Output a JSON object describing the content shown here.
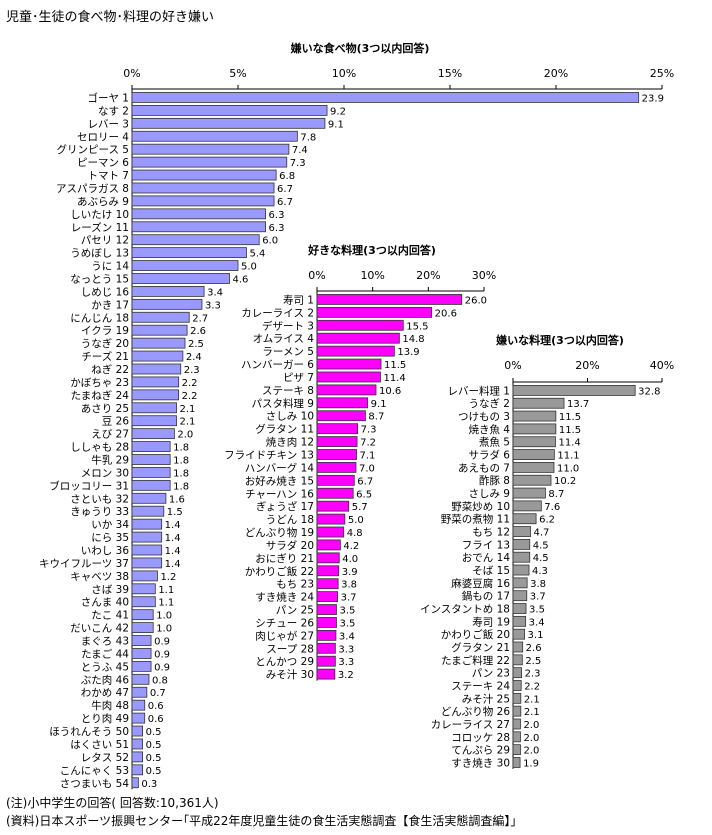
{
  "title": "児童･生徒の食べ物･料理の好き嫌い",
  "notes": [
    "(注)小中学生の回答( 回答数:10,361人)",
    "(資料)日本スポーツ振興センター｢平成22年度児童生徒の食生活実態調査【食生活実態調査編】｣"
  ],
  "chart_data": [
    {
      "id": "disliked-foods",
      "type": "bar",
      "orientation": "horizontal",
      "title": "嫌いな食べ物(3つ以内回答)",
      "xlim": [
        0,
        25
      ],
      "ticks": [
        "0%",
        "5%",
        "10%",
        "15%",
        "20%",
        "25%"
      ],
      "color": "#9999ff",
      "categories": [
        "ゴーヤ 1",
        "なす 2",
        "レバー 3",
        "セロリー 4",
        "グリンピース 5",
        "ピーマン 6",
        "トマト 7",
        "アスパラガス 8",
        "あぶらみ 9",
        "しいたけ 10",
        "レーズン 11",
        "パセリ 12",
        "うめぼし 13",
        "うに 14",
        "なっとう 15",
        "しめじ 16",
        "かき 17",
        "にんじん 18",
        "イクラ 19",
        "うなぎ 20",
        "チーズ 21",
        "ねぎ 22",
        "かぼちゃ 23",
        "たまねぎ 24",
        "あさり 25",
        "豆 26",
        "えび 27",
        "ししゃも 28",
        "牛乳 29",
        "メロン 30",
        "ブロッコリー 31",
        "さといも 32",
        "きゅうり 33",
        "いか 34",
        "にら 35",
        "いわし 36",
        "キウイフルーツ 37",
        "キャベツ 38",
        "さば 39",
        "さんま 40",
        "たこ 41",
        "だいこん 42",
        "まぐろ 43",
        "たまご 44",
        "とうふ 45",
        "ぶた肉 46",
        "わかめ 47",
        "牛肉 48",
        "とり肉 49",
        "ほうれんそう 50",
        "はくさい 51",
        "レタス 52",
        "こんにゃく 53",
        "さつまいも 54"
      ],
      "values": [
        23.9,
        9.2,
        9.1,
        7.8,
        7.4,
        7.3,
        6.8,
        6.7,
        6.7,
        6.3,
        6.3,
        6.0,
        5.4,
        5.0,
        4.6,
        3.4,
        3.3,
        2.7,
        2.6,
        2.5,
        2.4,
        2.3,
        2.2,
        2.2,
        2.1,
        2.1,
        2.0,
        1.8,
        1.8,
        1.8,
        1.8,
        1.6,
        1.5,
        1.4,
        1.4,
        1.4,
        1.4,
        1.2,
        1.1,
        1.1,
        1.0,
        1.0,
        0.9,
        0.9,
        0.9,
        0.8,
        0.7,
        0.6,
        0.6,
        0.5,
        0.5,
        0.5,
        0.5,
        0.3
      ],
      "value_labels": [
        "23.9",
        "9.2",
        "9.1",
        "7.8",
        "7.4",
        "7.3",
        "6.8",
        "6.7",
        "6.7",
        "6.3",
        "6.3",
        "6.0",
        "5.4",
        "5.0",
        "4.6",
        "3.4",
        "3.3",
        "2.7",
        "2.6",
        "2.5",
        "2.4",
        "2.3",
        "2.2",
        "2.2",
        "2.1",
        "2.1",
        "2.0",
        "1.8",
        "1.8",
        "1.8",
        "1.8",
        "1.6",
        "1.5",
        "1.4",
        "1.4",
        "1.4",
        "1.4",
        "1.2",
        "1.1",
        "1.1",
        "1.0",
        "1.0",
        "0.9",
        "0.9",
        "0.9",
        "0.8",
        "0.7",
        "0.6",
        "0.6",
        "0.5",
        "0.5",
        "0.5",
        "0.5",
        "0.3"
      ]
    },
    {
      "id": "liked-dishes",
      "type": "bar",
      "orientation": "horizontal",
      "title": "好きな料理(3つ以内回答)",
      "xlim": [
        0,
        30
      ],
      "ticks": [
        "0%",
        "10%",
        "20%",
        "30%"
      ],
      "color": "#ff00ff",
      "categories": [
        "寿司 1",
        "カレーライス 2",
        "デザート 3",
        "オムライス 4",
        "ラーメン 5",
        "ハンバーガー 6",
        "ピザ 7",
        "ステーキ 8",
        "パスタ料理 9",
        "さしみ 10",
        "グラタン 11",
        "焼き肉 12",
        "フライドチキン 13",
        "ハンバーグ 14",
        "お好み焼き 15",
        "チャーハン 16",
        "ぎょうざ 17",
        "うどん 18",
        "どんぶり物 19",
        "サラダ 20",
        "おにぎり 21",
        "かわりご飯 22",
        "もち 23",
        "すき焼き 24",
        "パン 25",
        "シチュー 26",
        "肉じゃが 27",
        "スープ 28",
        "とんかつ 29",
        "みそ汁 30"
      ],
      "values": [
        26.0,
        20.6,
        15.5,
        14.8,
        13.9,
        11.5,
        11.4,
        10.6,
        9.1,
        8.7,
        7.3,
        7.2,
        7.1,
        7.0,
        6.7,
        6.5,
        5.7,
        5.0,
        4.8,
        4.2,
        4.0,
        3.9,
        3.8,
        3.7,
        3.5,
        3.5,
        3.4,
        3.3,
        3.3,
        3.2
      ],
      "value_labels": [
        "26.0",
        "20.6",
        "15.5",
        "14.8",
        "13.9",
        "11.5",
        "11.4",
        "10.6",
        "9.1",
        "8.7",
        "7.3",
        "7.2",
        "7.1",
        "7.0",
        "6.7",
        "6.5",
        "5.7",
        "5.0",
        "4.8",
        "4.2",
        "4.0",
        "3.9",
        "3.8",
        "3.7",
        "3.5",
        "3.5",
        "3.4",
        "3.3",
        "3.3",
        "3.2"
      ]
    },
    {
      "id": "disliked-dishes",
      "type": "bar",
      "orientation": "horizontal",
      "title": "嫌いな料理(3つ以内回答)",
      "xlim": [
        0,
        40
      ],
      "ticks": [
        "0%",
        "20%",
        "40%"
      ],
      "color": "#999999",
      "categories": [
        "レバー料理 1",
        "うなぎ 2",
        "つけもの 3",
        "焼き魚 4",
        "煮魚 5",
        "サラダ 6",
        "あえもの 7",
        "酢豚 8",
        "さしみ 9",
        "野菜炒め 10",
        "野菜の煮物 11",
        "もち 12",
        "フライ 13",
        "おでん 14",
        "そば 15",
        "麻婆豆腐 16",
        "鍋もの 17",
        "インスタントめ 18",
        "寿司 19",
        "かわりご飯 20",
        "グラタン 21",
        "たまご料理 22",
        "パン 23",
        "ステーキ 24",
        "みそ汁 25",
        "どんぶり物 26",
        "カレーライス 27",
        "コロッケ 28",
        "てんぷら 29",
        "すき焼き 30"
      ],
      "values": [
        32.8,
        13.7,
        11.5,
        11.5,
        11.4,
        11.1,
        11.0,
        10.2,
        8.7,
        7.6,
        6.2,
        4.7,
        4.5,
        4.5,
        4.3,
        3.8,
        3.7,
        3.5,
        3.4,
        3.1,
        2.6,
        2.5,
        2.3,
        2.2,
        2.1,
        2.1,
        2.0,
        2.0,
        2.0,
        1.9
      ],
      "value_labels": [
        "32.8",
        "13.7",
        "11.5",
        "11.5",
        "11.4",
        "11.1",
        "11.0",
        "10.2",
        "8.7",
        "7.6",
        "6.2",
        "4.7",
        "4.5",
        "4.5",
        "4.3",
        "3.8",
        "3.7",
        "3.5",
        "3.4",
        "3.1",
        "2.6",
        "2.5",
        "2.3",
        "2.2",
        "2.1",
        "2.1",
        "2.0",
        "2.0",
        "2.0",
        "1.9"
      ]
    }
  ]
}
